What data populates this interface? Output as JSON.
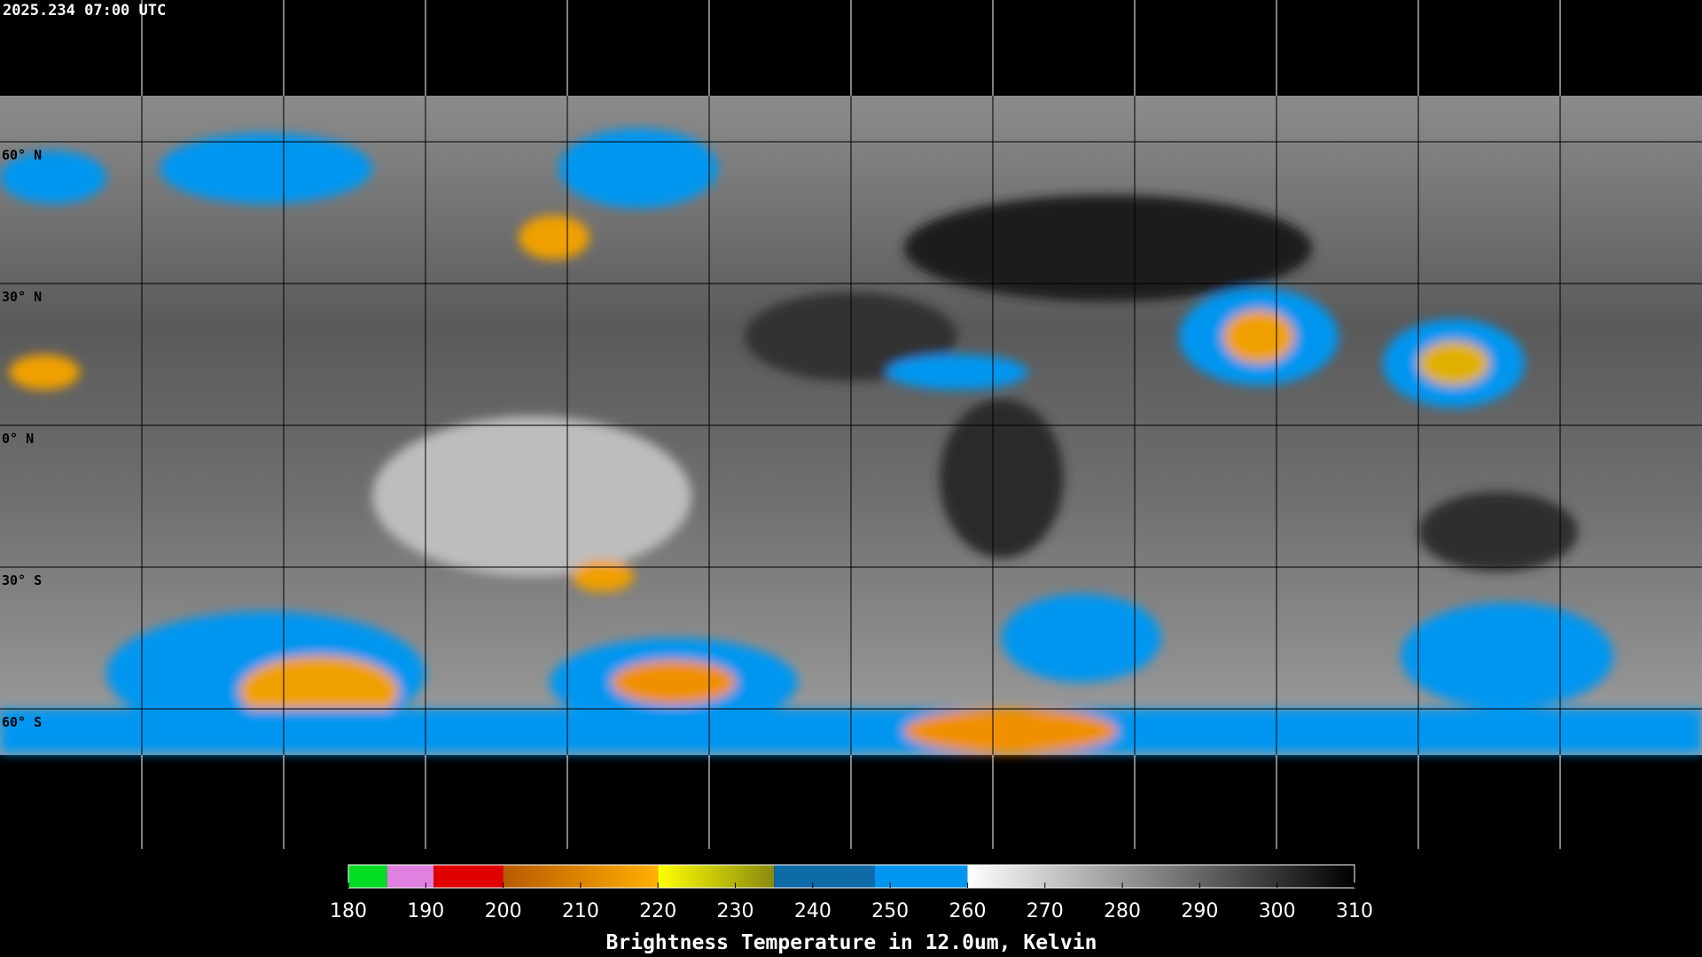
{
  "header": {
    "timestamp": "2025.234 07:00 UTC"
  },
  "map": {
    "lat_labels": [
      "60° N",
      "30° N",
      "0° N",
      "30° S",
      "60° S"
    ]
  },
  "colorbar": {
    "range": [
      180,
      310
    ],
    "ticks": [
      180,
      190,
      200,
      210,
      220,
      230,
      240,
      250,
      260,
      270,
      280,
      290,
      300,
      310
    ],
    "segments": [
      {
        "from": 180,
        "to": 185,
        "color": "#00dd22"
      },
      {
        "from": 185,
        "to": 191,
        "color": "#e080e0"
      },
      {
        "from": 191,
        "to": 200,
        "color": "#e00000"
      },
      {
        "from": 200,
        "to": 220,
        "color": "#b85a00",
        "color_to": "#ffb000"
      },
      {
        "from": 220,
        "to": 235,
        "color": "#ffff00",
        "color_to": "#8a8a10"
      },
      {
        "from": 235,
        "to": 248,
        "color": "#0f6aa8"
      },
      {
        "from": 248,
        "to": 260,
        "color": "#0096f0"
      },
      {
        "from": 260,
        "to": 310,
        "color": "#ffffff",
        "color_to": "#000000"
      }
    ],
    "title": "Brightness Temperature in 12.0um, Kelvin"
  }
}
